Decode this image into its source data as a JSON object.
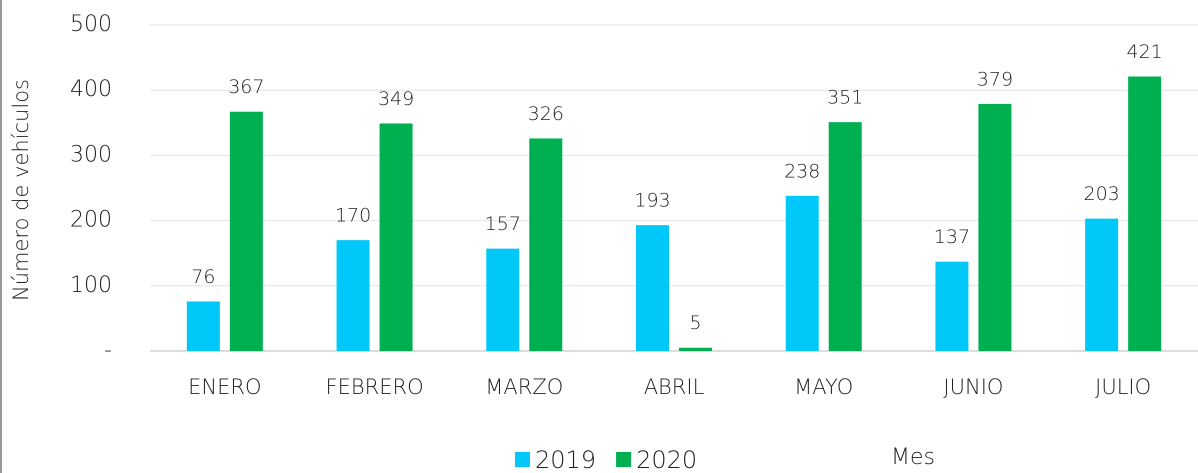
{
  "chart_data": {
    "type": "bar",
    "y_label": "Número de vehículos",
    "x_label": "Mes",
    "categories": [
      "ENERO",
      "FEBRERO",
      "MARZO",
      "ABRIL",
      "MAYO",
      "JUNIO",
      "JULIO"
    ],
    "series": [
      {
        "name": "2019",
        "color": "#00c8f8",
        "values": [
          76,
          170,
          157,
          193,
          238,
          137,
          203
        ]
      },
      {
        "name": "2020",
        "color": "#00b050",
        "values": [
          367,
          349,
          326,
          5,
          351,
          379,
          421
        ]
      }
    ],
    "ylim": [
      0,
      500
    ],
    "yticks": [
      {
        "value": 0,
        "label": "-"
      },
      100,
      200,
      300,
      400,
      500
    ],
    "grid": true
  }
}
